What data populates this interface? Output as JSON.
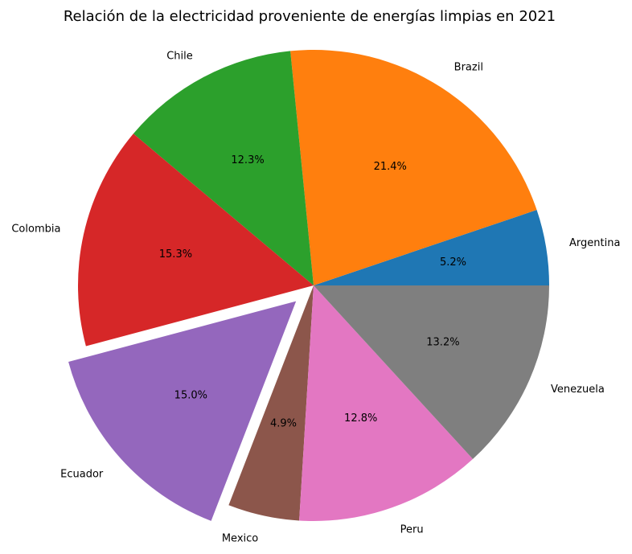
{
  "chart_data": {
    "type": "pie",
    "title": "Relación de la electricidad proveniente de energías limpias en 2021",
    "categories": [
      "Argentina",
      "Brazil",
      "Chile",
      "Colombia",
      "Ecuador",
      "Mexico",
      "Peru",
      "Venezuela"
    ],
    "values": [
      5.2,
      21.4,
      12.3,
      15.3,
      15.0,
      4.9,
      12.8,
      13.2
    ],
    "percent_labels": [
      "5.2%",
      "21.4%",
      "12.3%",
      "15.3%",
      "15.0%",
      "4.9%",
      "12.8%",
      "13.2%"
    ],
    "colors": [
      "#1f77b4",
      "#ff7f0e",
      "#2ca02c",
      "#d62728",
      "#9467bd",
      "#8c564b",
      "#e377c2",
      "#7f7f7f"
    ],
    "exploded": "Ecuador",
    "start_angle_deg": 0,
    "direction": "counterclockwise"
  }
}
